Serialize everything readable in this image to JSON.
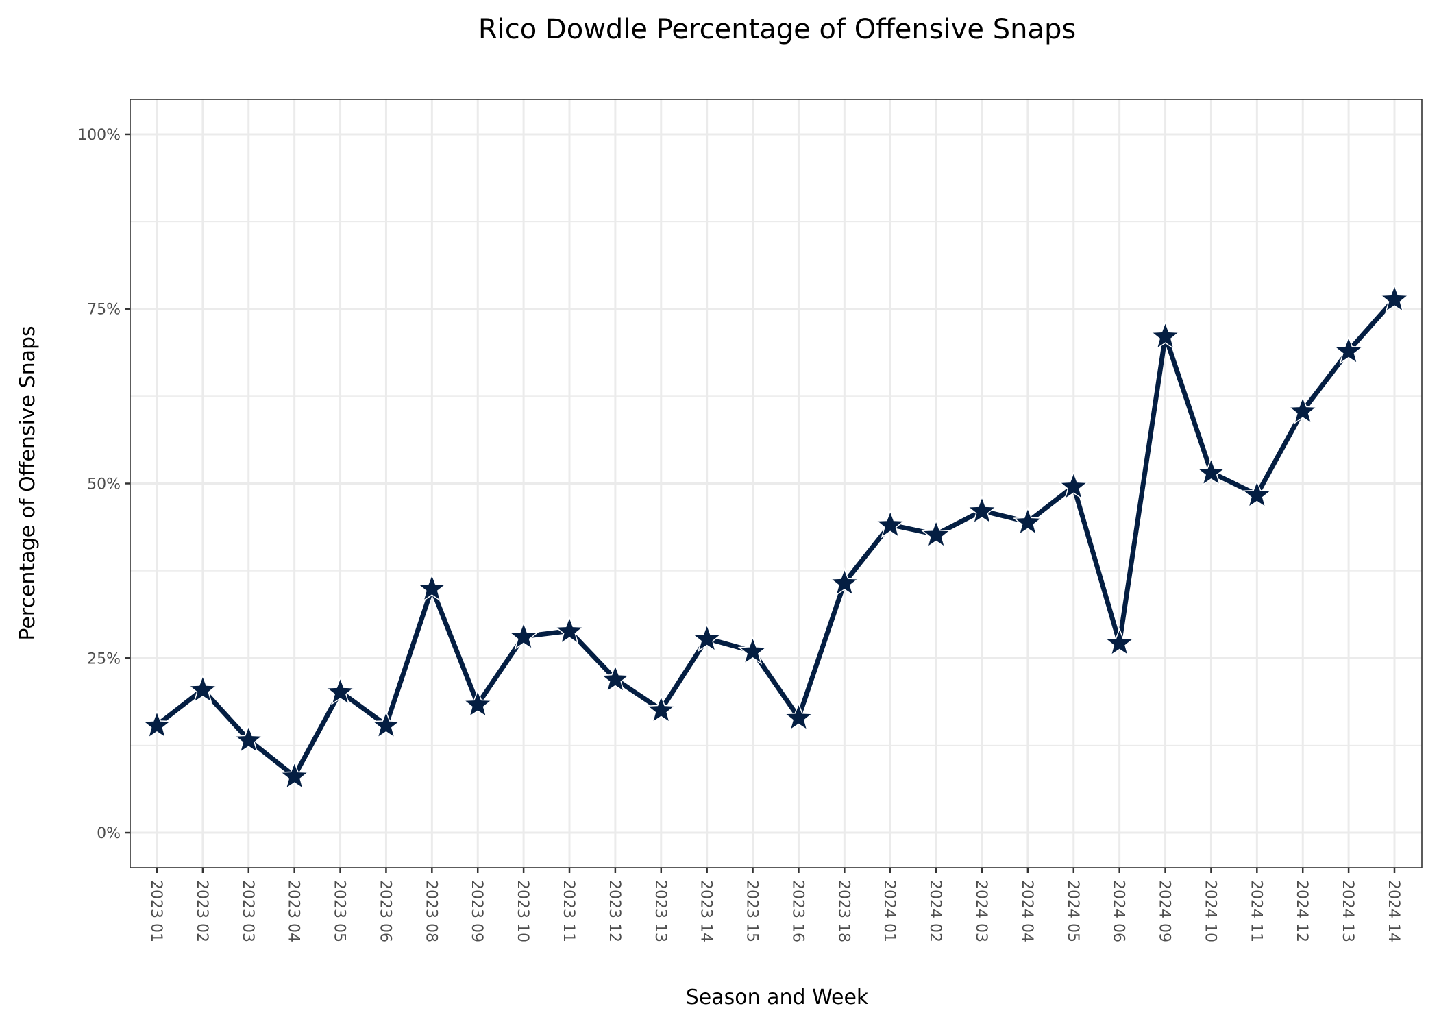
{
  "chart_data": {
    "type": "line",
    "title": "Rico Dowdle Percentage of Offensive Snaps",
    "xlabel": "Season and Week",
    "ylabel": "Percentage of Offensive Snaps",
    "ylim": [
      -5,
      105
    ],
    "yticks": [
      0,
      25,
      50,
      75,
      100
    ],
    "ytick_labels": [
      "0%",
      "25%",
      "50%",
      "75%",
      "100%"
    ],
    "grid": true,
    "categories": [
      "2023 01",
      "2023 02",
      "2023 03",
      "2023 04",
      "2023 05",
      "2023 06",
      "2023 08",
      "2023 09",
      "2023 10",
      "2023 11",
      "2023 12",
      "2023 13",
      "2023 14",
      "2023 15",
      "2023 16",
      "2023 18",
      "2024 01",
      "2024 02",
      "2024 03",
      "2024 04",
      "2024 05",
      "2024 06",
      "2024 09",
      "2024 10",
      "2024 11",
      "2024 12",
      "2024 13",
      "2024 14"
    ],
    "series": [
      {
        "name": "Rico Dowdle",
        "marker": "star",
        "values": [
          15.4,
          20.5,
          13.3,
          8.1,
          20.2,
          15.4,
          35.0,
          18.4,
          28.1,
          28.9,
          22.0,
          17.6,
          27.8,
          26.0,
          16.5,
          35.8,
          44.1,
          42.7,
          46.1,
          44.5,
          49.6,
          27.2,
          71.1,
          51.6,
          48.4,
          60.4,
          69.0,
          76.4
        ]
      }
    ],
    "colors": {
      "line": "#041E42",
      "marker_fill": "#041E42",
      "marker_edge": "#ffffff",
      "grid": "#ebebeb",
      "panel_border": "#333333"
    }
  }
}
